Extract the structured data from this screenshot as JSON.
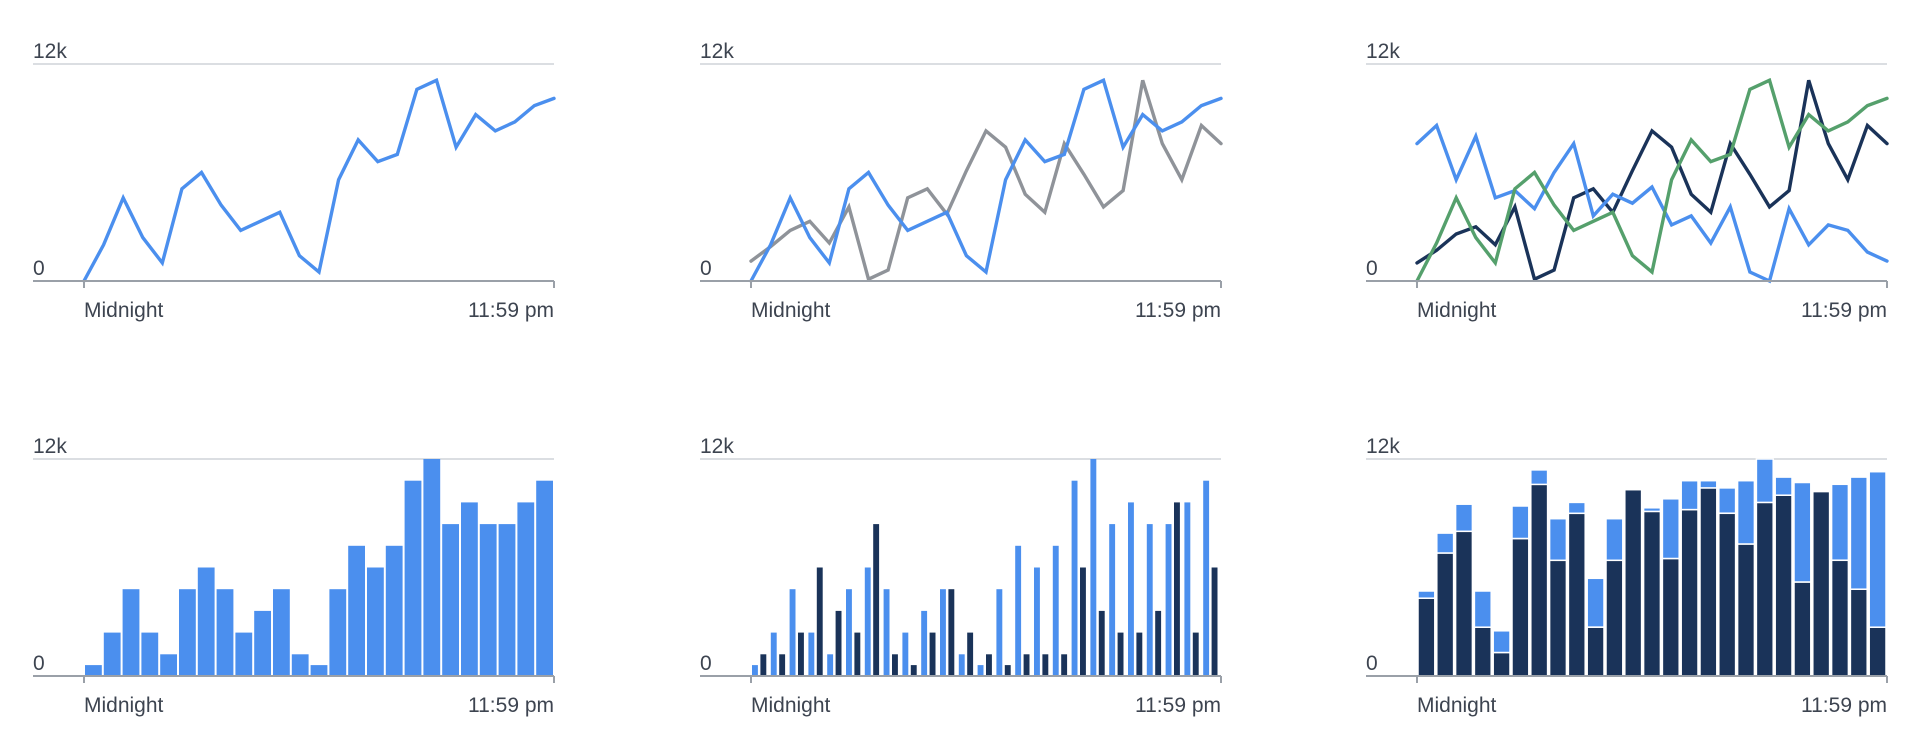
{
  "colors": {
    "blue": "#4b8fee",
    "gray": "#8f9399",
    "navy": "#1a3359",
    "green": "#55a06c",
    "axis": "#9aa0a8",
    "grid": "#cfd3d8",
    "text": "#3d4450"
  },
  "chart_data": [
    {
      "type": "line",
      "ylim": [
        0,
        12000
      ],
      "yticks": [
        "0",
        "12k"
      ],
      "xticks": [
        "Midnight",
        "11:59 pm"
      ],
      "series": [
        {
          "color": "blue",
          "values": [
            0,
            2000,
            4600,
            2400,
            1000,
            5100,
            6000,
            4200,
            2800,
            3300,
            3800,
            1400,
            500,
            5600,
            7800,
            6600,
            7000,
            10600,
            11100,
            7400,
            9200,
            8300,
            8800,
            9700,
            10100
          ]
        }
      ]
    },
    {
      "type": "line",
      "ylim": [
        0,
        12000
      ],
      "yticks": [
        "0",
        "12k"
      ],
      "xticks": [
        "Midnight",
        "11:59 pm"
      ],
      "series": [
        {
          "color": "gray",
          "values": [
            1100,
            1900,
            2800,
            3300,
            2100,
            4100,
            100,
            600,
            4600,
            5100,
            3700,
            6100,
            8300,
            7400,
            4800,
            3800,
            7600,
            5900,
            4100,
            5000,
            11100,
            7600,
            5600,
            8600,
            7600
          ]
        },
        {
          "color": "blue",
          "values": [
            0,
            2000,
            4600,
            2400,
            1000,
            5100,
            6000,
            4200,
            2800,
            3300,
            3800,
            1400,
            500,
            5600,
            7800,
            6600,
            7000,
            10600,
            11100,
            7400,
            9200,
            8300,
            8800,
            9700,
            10100
          ]
        }
      ]
    },
    {
      "type": "line",
      "ylim": [
        0,
        12000
      ],
      "yticks": [
        "0",
        "12k"
      ],
      "xticks": [
        "Midnight",
        "11:59 pm"
      ],
      "series": [
        {
          "color": "navy",
          "values": [
            1000,
            1700,
            2600,
            3000,
            2000,
            4100,
            100,
            600,
            4600,
            5100,
            3800,
            6100,
            8300,
            7400,
            4800,
            3800,
            7600,
            5900,
            4100,
            5000,
            11100,
            7600,
            5600,
            8600,
            7600
          ]
        },
        {
          "color": "blue",
          "values": [
            7600,
            8600,
            5600,
            8000,
            4600,
            5000,
            4000,
            6000,
            7600,
            3600,
            4800,
            4300,
            5200,
            3100,
            3600,
            2100,
            4100,
            500,
            0,
            4000,
            2000,
            3100,
            2800,
            1600,
            1100
          ]
        },
        {
          "color": "green",
          "values": [
            0,
            2100,
            4600,
            2400,
            1000,
            5100,
            6000,
            4200,
            2800,
            3300,
            3800,
            1400,
            500,
            5600,
            7800,
            6600,
            7000,
            10600,
            11100,
            7400,
            9200,
            8300,
            8800,
            9700,
            10100
          ]
        }
      ]
    },
    {
      "type": "bar",
      "ylim": [
        0,
        12000
      ],
      "yticks": [
        "0",
        "12k"
      ],
      "xticks": [
        "Midnight",
        "11:59 pm"
      ],
      "series": [
        {
          "color": "blue",
          "values": [
            600,
            2400,
            4800,
            2400,
            1200,
            4800,
            6000,
            4800,
            2400,
            3600,
            4800,
            1200,
            600,
            4800,
            7200,
            6000,
            7200,
            10800,
            12000,
            8400,
            9600,
            8400,
            8400,
            9600,
            10800
          ]
        }
      ]
    },
    {
      "type": "bar",
      "grouped": true,
      "ylim": [
        0,
        12000
      ],
      "yticks": [
        "0",
        "12k"
      ],
      "xticks": [
        "Midnight",
        "11:59 pm"
      ],
      "series": [
        {
          "color": "blue",
          "values": [
            600,
            2400,
            4800,
            2400,
            1200,
            4800,
            6000,
            4800,
            2400,
            3600,
            4800,
            1200,
            600,
            4800,
            7200,
            6000,
            7200,
            10800,
            12000,
            8400,
            9600,
            8400,
            8400,
            9600,
            10800
          ]
        },
        {
          "color": "navy",
          "values": [
            1200,
            1200,
            2400,
            6000,
            3600,
            2400,
            8400,
            1200,
            600,
            2400,
            4800,
            2400,
            1200,
            600,
            1200,
            1200,
            1200,
            6000,
            3600,
            2400,
            2400,
            3600,
            9600,
            2400,
            6000
          ]
        }
      ]
    },
    {
      "type": "bar",
      "stacked": true,
      "ylim": [
        0,
        12000
      ],
      "yticks": [
        "0",
        "12k"
      ],
      "xticks": [
        "Midnight",
        "11:59 pm"
      ],
      "series": [
        {
          "color": "navy",
          "values": [
            4300,
            6800,
            8000,
            2700,
            1300,
            7600,
            10600,
            6400,
            9000,
            2700,
            6400,
            10300,
            9100,
            6500,
            9200,
            10400,
            9000,
            7300,
            9600,
            10000,
            5200,
            10200,
            6400,
            4800,
            2700
          ]
        },
        {
          "color": "blue",
          "values": [
            400,
            1100,
            1500,
            2000,
            1200,
            1800,
            800,
            2300,
            600,
            2700,
            2300,
            0,
            200,
            3300,
            1600,
            400,
            1400,
            3500,
            2400,
            1000,
            5500,
            0,
            4200,
            6200,
            8600
          ]
        }
      ]
    }
  ]
}
